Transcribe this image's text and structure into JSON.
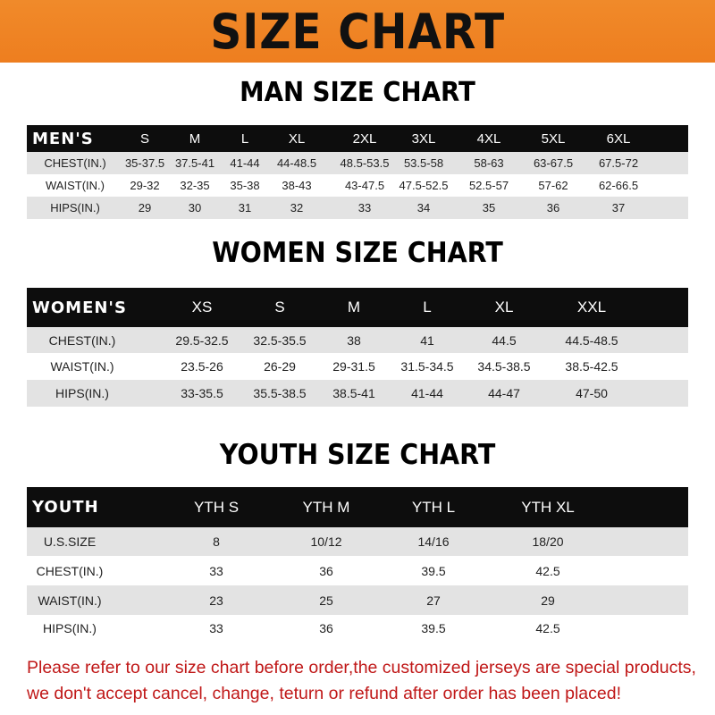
{
  "banner": {
    "title": "SIZE CHART"
  },
  "men": {
    "title": "MAN SIZE CHART",
    "header": [
      "MEN'S",
      "S",
      "M",
      "L",
      "XL",
      "2XL",
      "3XL",
      "4XL",
      "5XL",
      "6XL"
    ],
    "rows": [
      [
        "CHEST(IN.)",
        "35-37.5",
        "37.5-41",
        "41-44",
        "44-48.5",
        "48.5-53.5",
        "53.5-58",
        "58-63",
        "63-67.5",
        "67.5-72"
      ],
      [
        "WAIST(IN.)",
        "29-32",
        "32-35",
        "35-38",
        "38-43",
        "43-47.5",
        "47.5-52.5",
        "52.5-57",
        "57-62",
        "62-66.5"
      ],
      [
        "HIPS(IN.)",
        "29",
        "30",
        "31",
        "32",
        "33",
        "34",
        "35",
        "36",
        "37"
      ]
    ]
  },
  "women": {
    "title": "WOMEN SIZE CHART",
    "header": [
      "WOMEN'S",
      "XS",
      "S",
      "M",
      "L",
      "XL",
      "XXL"
    ],
    "rows": [
      [
        "CHEST(IN.)",
        "29.5-32.5",
        "32.5-35.5",
        "38",
        "41",
        "44.5",
        "44.5-48.5"
      ],
      [
        "WAIST(IN.)",
        "23.5-26",
        "26-29",
        "29-31.5",
        "31.5-34.5",
        "34.5-38.5",
        "38.5-42.5"
      ],
      [
        "HIPS(IN.)",
        "33-35.5",
        "35.5-38.5",
        "38.5-41",
        "41-44",
        "44-47",
        "47-50"
      ]
    ]
  },
  "youth": {
    "title": "YOUTH SIZE CHART",
    "header": [
      "YOUTH",
      "YTH S",
      "YTH M",
      "YTH L",
      "YTH XL"
    ],
    "rows": [
      [
        "U.S.SIZE",
        "8",
        "10/12",
        "14/16",
        "18/20"
      ],
      [
        "CHEST(IN.)",
        "33",
        "36",
        "39.5",
        "42.5"
      ],
      [
        "WAIST(IN.)",
        "23",
        "25",
        "27",
        "29"
      ],
      [
        "HIPS(IN.)",
        "33",
        "36",
        "39.5",
        "42.5"
      ]
    ]
  },
  "footer": {
    "line1": "Please refer to our size chart before order,the customized jerseys are special products,",
    "line2": "we don't accept cancel, change, teturn or refund after order has been placed!"
  }
}
